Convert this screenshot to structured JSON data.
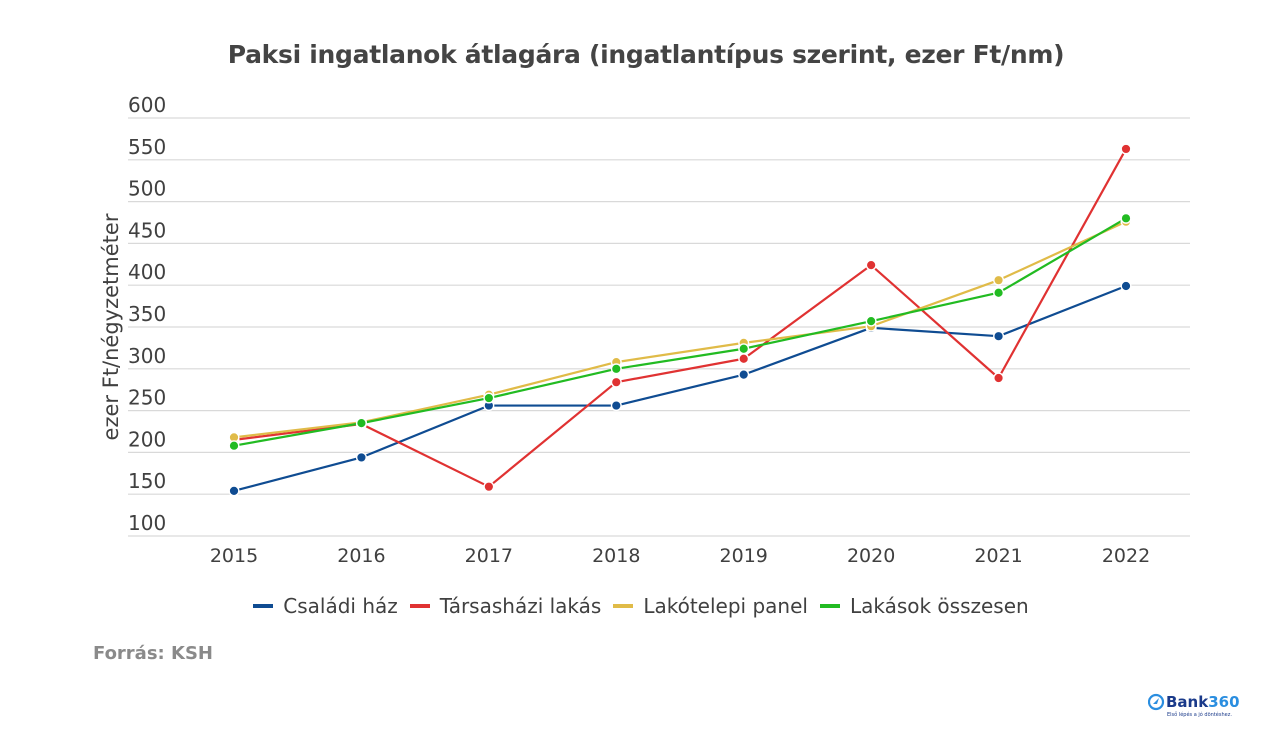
{
  "chart_data": {
    "type": "line",
    "title": "Paksi ingatlanok átlagára (ingatlantípus szerint, ezer Ft/nm)",
    "xlabel": "",
    "ylabel": "ezer Ft/négyzetméter",
    "ylim": [
      100,
      600
    ],
    "yticks": [
      "600",
      "550",
      "500",
      "450",
      "400",
      "350",
      "300",
      "250",
      "200",
      "150",
      "100"
    ],
    "ytick_values": [
      600,
      550,
      500,
      450,
      400,
      350,
      300,
      250,
      200,
      150,
      100
    ],
    "categories": [
      "2015",
      "2016",
      "2017",
      "2018",
      "2019",
      "2020",
      "2021",
      "2022"
    ],
    "grid": true,
    "legend_position": "bottom",
    "series": [
      {
        "name": "Családi ház",
        "color": "#0f4c92",
        "values": [
          154,
          194,
          256,
          256,
          293,
          349,
          339,
          399
        ]
      },
      {
        "name": "Társasházi lakás",
        "color": "#e03232",
        "values": [
          215,
          234,
          159,
          284,
          312,
          424,
          289,
          563
        ]
      },
      {
        "name": "Lakótelepi panel",
        "color": "#e0bb48",
        "values": [
          218,
          236,
          269,
          308,
          331,
          351,
          406,
          476
        ]
      },
      {
        "name": "Lakások összesen",
        "color": "#22bb22",
        "values": [
          208,
          235,
          265,
          300,
          324,
          357,
          391,
          480
        ]
      }
    ]
  },
  "source": "Forrás: KSH",
  "logo": {
    "brand": "Bank",
    "number": "360",
    "tagline": "Első lépés a jó döntéshez."
  }
}
